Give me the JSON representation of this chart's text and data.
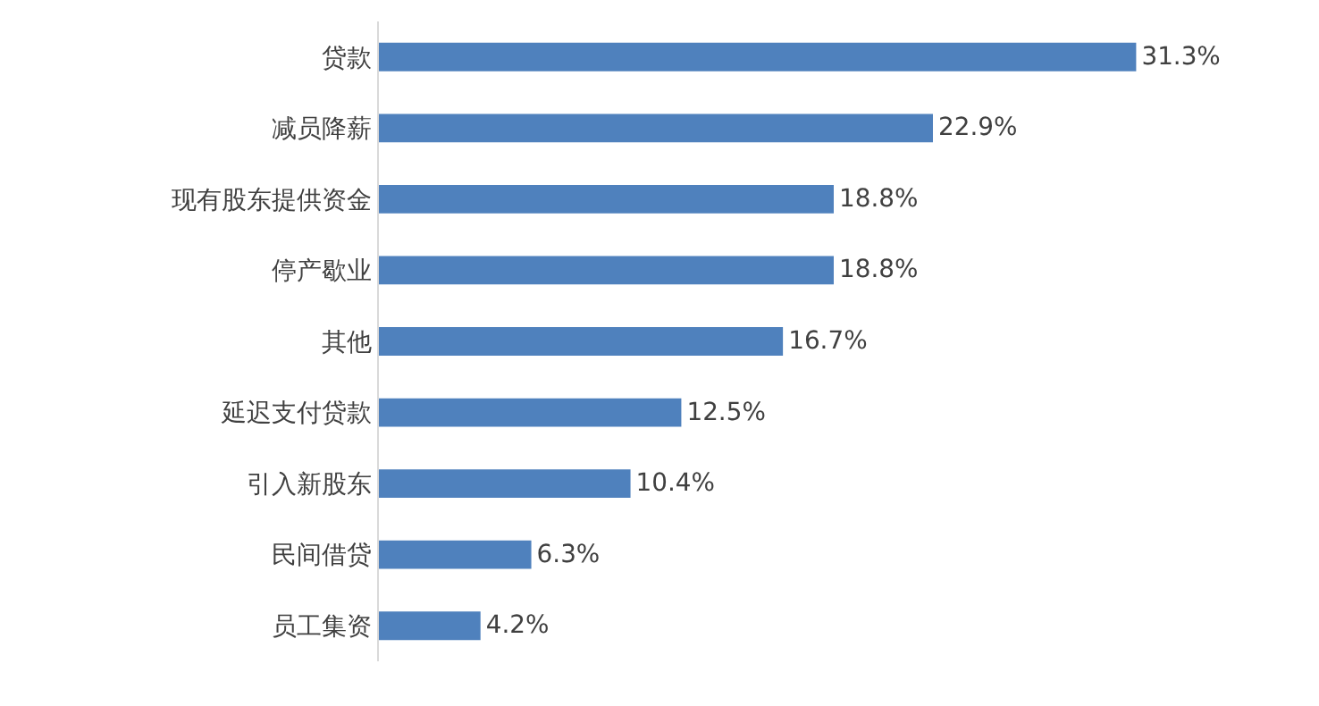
{
  "chart_data": {
    "type": "bar",
    "orientation": "horizontal",
    "categories": [
      "贷款",
      "减员降薪",
      "现有股东提供资金",
      "停产歇业",
      "其他",
      "延迟支付贷款",
      "引入新股东",
      "民间借贷",
      "员工集资"
    ],
    "values": [
      31.3,
      22.9,
      18.8,
      18.8,
      16.7,
      12.5,
      10.4,
      6.3,
      4.2
    ],
    "value_labels": [
      "31.3%",
      "22.9%",
      "18.8%",
      "18.8%",
      "16.7%",
      "12.5%",
      "10.4%",
      "6.3%",
      "4.2%"
    ],
    "color": "#4f81bd",
    "tick_labels": "y"
  }
}
